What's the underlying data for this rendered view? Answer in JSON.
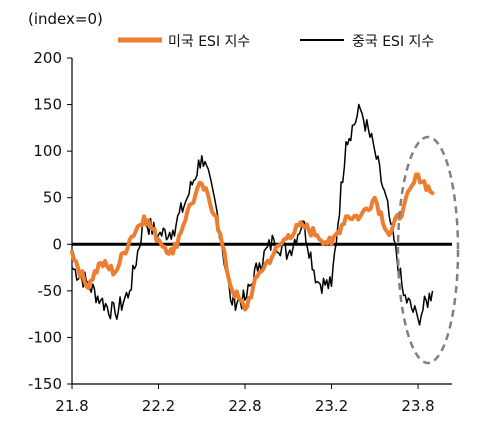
{
  "chart_data": {
    "type": "line",
    "unit_label": "(index=0)",
    "title": "",
    "xlabel": "",
    "ylabel": "",
    "ylim": [
      -150,
      200
    ],
    "yticks": [
      200,
      150,
      100,
      50,
      0,
      -50,
      -100,
      -150
    ],
    "ytick_labels": [
      "200",
      "150",
      "100",
      "50",
      "0",
      "-50",
      "-100",
      "-150"
    ],
    "xticks": [
      "21.8",
      "22.2",
      "22.8",
      "23.2",
      "23.8"
    ],
    "grid": false,
    "legend_position": "top",
    "colors": {
      "us": "#ED7D31",
      "china": "#000000",
      "zero_line": "#000000",
      "highlight_ellipse": "#808080"
    },
    "series": [
      {
        "name": "미국 ESI 지수",
        "key": "us",
        "points": [
          [
            "21.8",
            -8
          ],
          [
            "21.9",
            -45
          ],
          [
            "21.10",
            -20
          ],
          [
            "21.11",
            -30
          ],
          [
            "21.12",
            5
          ],
          [
            "22.1",
            30
          ],
          [
            "22.2",
            5
          ],
          [
            "22.3",
            -10
          ],
          [
            "22.4",
            35
          ],
          [
            "22.5",
            65
          ],
          [
            "22.6",
            30
          ],
          [
            "22.7",
            -45
          ],
          [
            "22.8",
            -70
          ],
          [
            "22.9",
            -30
          ],
          [
            "22.10",
            -10
          ],
          [
            "22.11",
            10
          ],
          [
            "22.12",
            20
          ],
          [
            "23.1",
            10
          ],
          [
            "23.2",
            0
          ],
          [
            "23.3",
            30
          ],
          [
            "23.4",
            30
          ],
          [
            "23.5",
            50
          ],
          [
            "23.6",
            10
          ],
          [
            "23.7",
            40
          ],
          [
            "23.8",
            75
          ],
          [
            "23.9",
            55
          ]
        ]
      },
      {
        "name": "중국 ESI 지수",
        "key": "china",
        "points": [
          [
            "21.8",
            -25
          ],
          [
            "21.9",
            -40
          ],
          [
            "21.10",
            -60
          ],
          [
            "21.11",
            -75
          ],
          [
            "21.12",
            -50
          ],
          [
            "22.1",
            25
          ],
          [
            "22.2",
            10
          ],
          [
            "22.3",
            15
          ],
          [
            "22.4",
            50
          ],
          [
            "22.5",
            95
          ],
          [
            "22.6",
            40
          ],
          [
            "22.7",
            -60
          ],
          [
            "22.8",
            -60
          ],
          [
            "22.9",
            -20
          ],
          [
            "22.10",
            5
          ],
          [
            "22.11",
            -10
          ],
          [
            "22.12",
            25
          ],
          [
            "23.1",
            -40
          ],
          [
            "23.2",
            -45
          ],
          [
            "23.3",
            110
          ],
          [
            "23.4",
            145
          ],
          [
            "23.5",
            100
          ],
          [
            "23.6",
            30
          ],
          [
            "23.7",
            -55
          ],
          [
            "23.8",
            -80
          ],
          [
            "23.9",
            -50
          ]
        ]
      }
    ]
  }
}
